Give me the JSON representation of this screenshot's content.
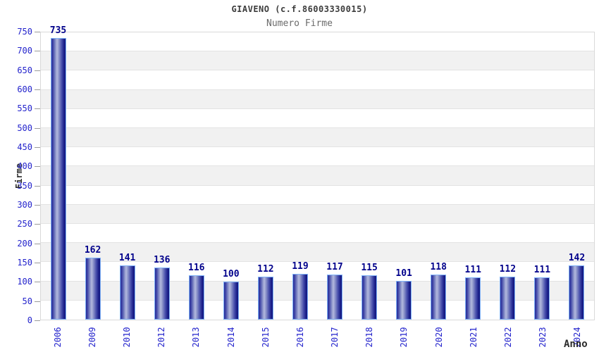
{
  "chart_data": {
    "type": "bar",
    "title": "GIAVENO (c.f.86003330015)",
    "subtitle": "Numero Firme",
    "xlabel": "Anno",
    "ylabel": "Firme",
    "categories": [
      "2006",
      "2009",
      "2010",
      "2012",
      "2013",
      "2014",
      "2015",
      "2016",
      "2017",
      "2018",
      "2019",
      "2020",
      "2021",
      "2022",
      "2023",
      "2024"
    ],
    "values": [
      735,
      162,
      141,
      136,
      116,
      100,
      112,
      119,
      117,
      115,
      101,
      118,
      111,
      112,
      111,
      142
    ],
    "ylim": [
      0,
      750
    ],
    "ytick_step": 50,
    "grid": "horizontal-alternating-bands",
    "legend": "none",
    "colors": {
      "tick_label": "#2323cc",
      "value_label": "#00008b",
      "bar_dark": "#1a1f8a",
      "bar_light": "#b3b9de",
      "bar_border": "#7fb2f8",
      "band_gray": "#f1f1f1",
      "band_white": "#ffffff",
      "plot_border": "#d9d9d9",
      "title_color": "#3c3c3c",
      "subtitle_color": "#6b6b6b",
      "axis_title_color": "#2b2b2b"
    }
  }
}
